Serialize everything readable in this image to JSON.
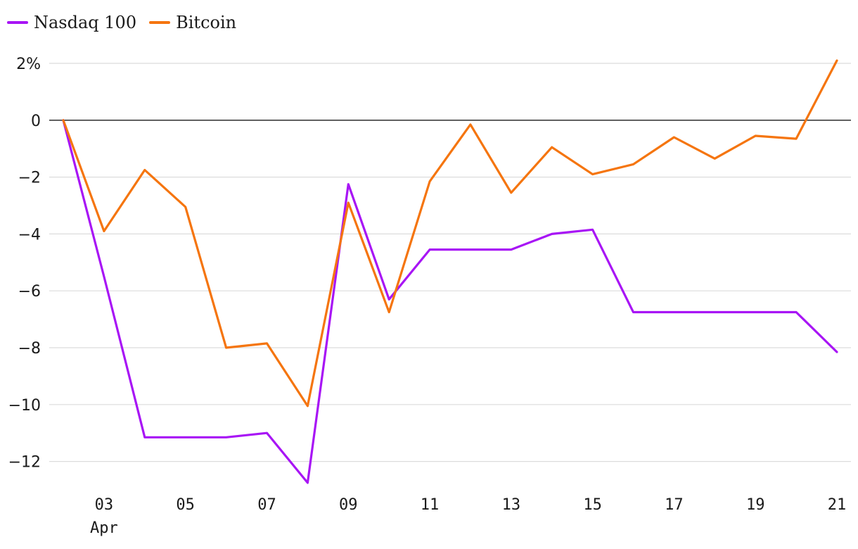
{
  "chart_data": {
    "type": "line",
    "title": "",
    "xlabel": "",
    "ylabel": "",
    "x": [
      "02",
      "03",
      "04",
      "05",
      "06",
      "07",
      "08",
      "09",
      "10",
      "11",
      "12",
      "13",
      "14",
      "15",
      "16",
      "17",
      "18",
      "19",
      "20",
      "21"
    ],
    "x_tick_labels": [
      "03",
      "05",
      "07",
      "09",
      "11",
      "13",
      "15",
      "17",
      "19",
      "21"
    ],
    "x_secondary_label": "Apr",
    "y_tick_labels": [
      "2%",
      "0",
      "−2",
      "−4",
      "−6",
      "−8",
      "−10",
      "−12"
    ],
    "y_tick_values": [
      2,
      0,
      -2,
      -4,
      -6,
      -8,
      -10,
      -12
    ],
    "ylim": [
      -12.8,
      2.3
    ],
    "grid": true,
    "zero_line": true,
    "legend_position": "top-left",
    "series": [
      {
        "name": "Nasdaq 100",
        "color": "#a815f5",
        "values": [
          0,
          -5.5,
          -11.15,
          -11.15,
          -11.15,
          -11.0,
          -12.75,
          -2.25,
          -6.3,
          -4.55,
          -4.55,
          -4.55,
          -4.0,
          -3.85,
          -6.75,
          -6.75,
          -6.75,
          -6.75,
          -6.75,
          -8.15
        ]
      },
      {
        "name": "Bitcoin",
        "color": "#f5750f",
        "values": [
          0,
          -3.9,
          -1.75,
          -3.05,
          -8.0,
          -7.85,
          -10.05,
          -2.9,
          -6.75,
          -2.15,
          -0.15,
          -2.55,
          -0.95,
          -1.9,
          -1.55,
          -0.6,
          -1.35,
          -0.55,
          -0.65,
          2.1
        ]
      }
    ]
  }
}
